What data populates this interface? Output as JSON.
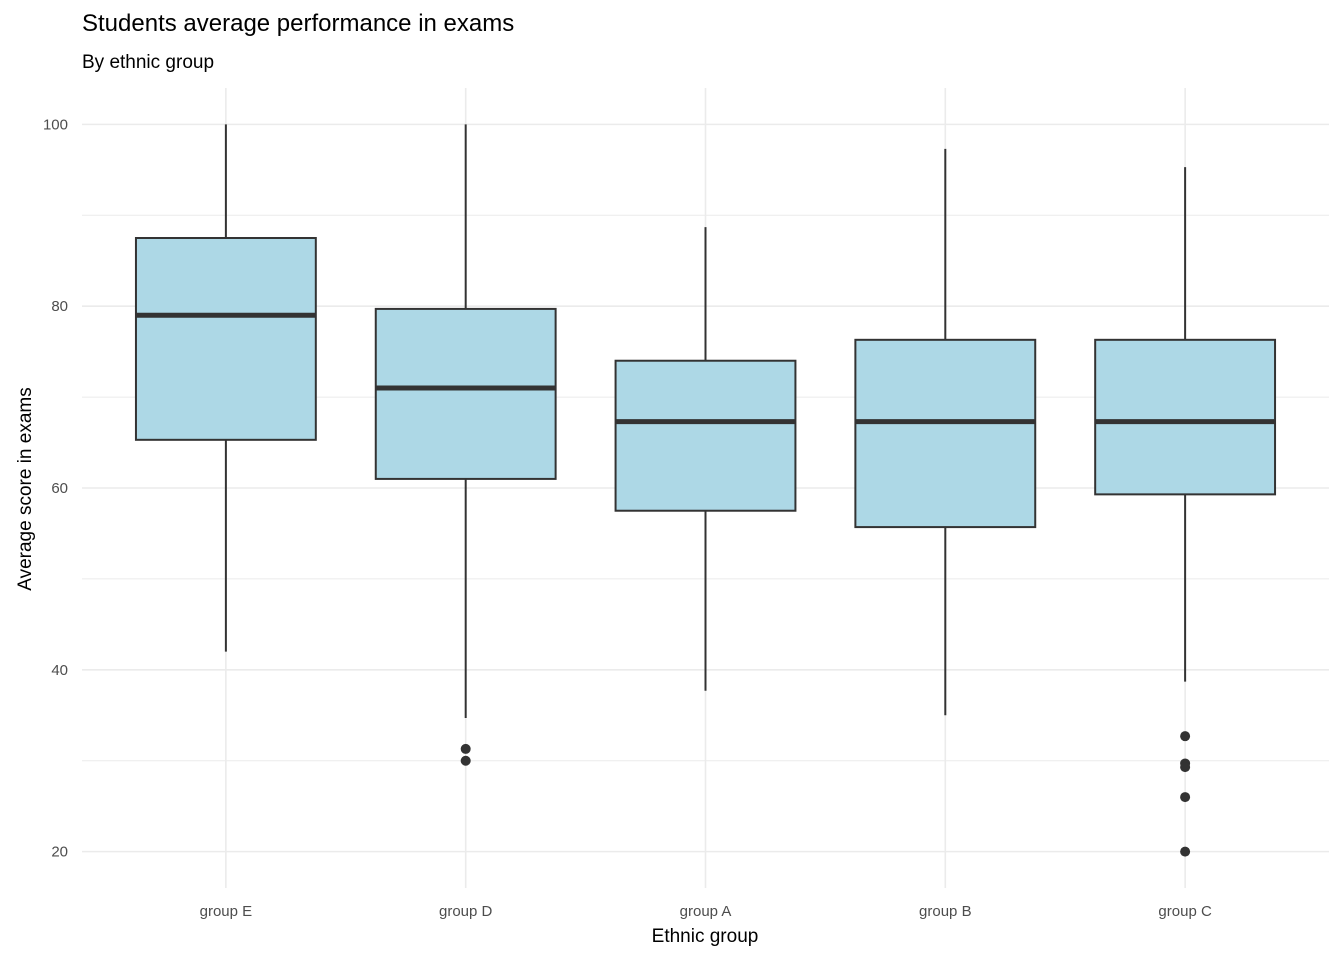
{
  "chart_data": {
    "type": "boxplot",
    "title": "Students average performance in exams",
    "subtitle": "By ethnic group",
    "xlabel": "Ethnic group",
    "ylabel": "Average score in exams",
    "ylim": [
      16,
      104
    ],
    "yticks": [
      20,
      40,
      60,
      80,
      100
    ],
    "grid": true,
    "box_color": "#add8e6",
    "line_color": "#333333",
    "grid_color": "#ebebeb",
    "categories": [
      "group E",
      "group D",
      "group A",
      "group B",
      "group C"
    ],
    "boxes": [
      {
        "category": "group E",
        "whisker_low": 42.0,
        "q1": 65.3,
        "median": 79.0,
        "q3": 87.5,
        "whisker_high": 100.0,
        "outliers": []
      },
      {
        "category": "group D",
        "whisker_low": 34.7,
        "q1": 61.0,
        "median": 71.0,
        "q3": 79.7,
        "whisker_high": 100.0,
        "outliers": [
          31.3,
          30.0
        ]
      },
      {
        "category": "group A",
        "whisker_low": 37.7,
        "q1": 57.5,
        "median": 67.3,
        "q3": 74.0,
        "whisker_high": 88.7,
        "outliers": []
      },
      {
        "category": "group B",
        "whisker_low": 35.0,
        "q1": 55.7,
        "median": 67.3,
        "q3": 76.3,
        "whisker_high": 97.3,
        "outliers": []
      },
      {
        "category": "group C",
        "whisker_low": 38.7,
        "q1": 59.3,
        "median": 67.3,
        "q3": 76.3,
        "whisker_high": 95.3,
        "outliers": [
          32.7,
          29.7,
          29.3,
          26.0,
          20.0
        ]
      }
    ]
  }
}
